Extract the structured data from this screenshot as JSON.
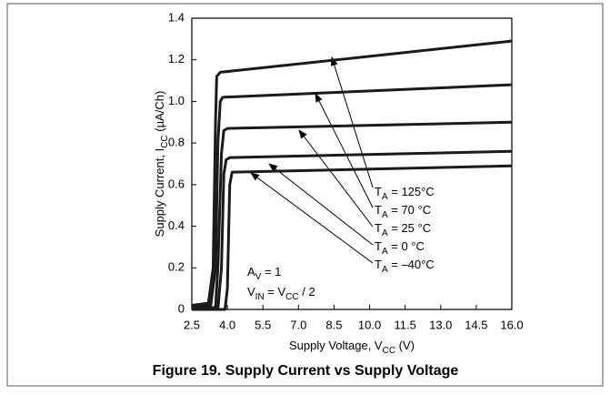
{
  "chart_data": {
    "type": "line",
    "title": "Figure 19. Supply Current vs Supply Voltage",
    "x_label": [
      "Supply Voltage, V",
      "CC",
      " (V)"
    ],
    "y_label": [
      "Supply Current, I",
      "CC",
      " (µA/Ch)"
    ],
    "annotations": [
      [
        "A",
        "V",
        " = 1"
      ],
      [
        "V",
        "IN",
        " = V",
        "CC",
        " / 2"
      ]
    ],
    "color": "#1a1a1a",
    "xlim": [
      2.5,
      16
    ],
    "ylim": [
      0,
      1.4
    ],
    "xticks": [
      2.5,
      {
        "value": 4,
        "label": "4.0"
      },
      5.5,
      {
        "value": 7,
        "label": "7.0"
      },
      8.5,
      {
        "value": 10,
        "label": "10.0"
      },
      11.5,
      {
        "value": 13,
        "label": "13.0"
      },
      14.5,
      {
        "value": 16,
        "label": "16.0"
      }
    ],
    "yticks": [
      0,
      0.2,
      0.4,
      0.6,
      0.8,
      {
        "value": 1,
        "label": "1.0"
      },
      1.2,
      1.4
    ],
    "series": [
      {
        "name": [
          "T",
          "A",
          " = 125°C"
        ],
        "x": [
          2.5,
          3.2,
          3.4,
          3.5,
          3.55,
          3.7,
          16
        ],
        "values": [
          0.02,
          0.03,
          0.2,
          0.9,
          1.12,
          1.14,
          1.29
        ]
      },
      {
        "name": [
          "T",
          "A",
          " = 70 °C"
        ],
        "x": [
          2.5,
          3.3,
          3.5,
          3.6,
          3.7,
          3.8,
          16
        ],
        "values": [
          0.01,
          0.02,
          0.2,
          0.8,
          1.0,
          1.02,
          1.08
        ]
      },
      {
        "name": [
          "T",
          "A",
          " = 25 °C"
        ],
        "x": [
          2.5,
          3.5,
          3.6,
          3.75,
          3.85,
          4.0,
          16
        ],
        "values": [
          0,
          0.01,
          0.2,
          0.75,
          0.86,
          0.87,
          0.9
        ]
      },
      {
        "name": [
          "T",
          "A",
          " = 0 °C"
        ],
        "x": [
          2.5,
          3.6,
          3.75,
          3.85,
          3.95,
          4.1,
          16
        ],
        "values": [
          0,
          0,
          0.2,
          0.65,
          0.72,
          0.73,
          0.76
        ]
      },
      {
        "name": [
          "T",
          "A",
          " = –40°C"
        ],
        "x": [
          2.5,
          3.9,
          4.0,
          4.1,
          4.2,
          4.3,
          16
        ],
        "values": [
          0,
          0,
          0.1,
          0.6,
          0.66,
          0.66,
          0.69
        ]
      }
    ]
  }
}
